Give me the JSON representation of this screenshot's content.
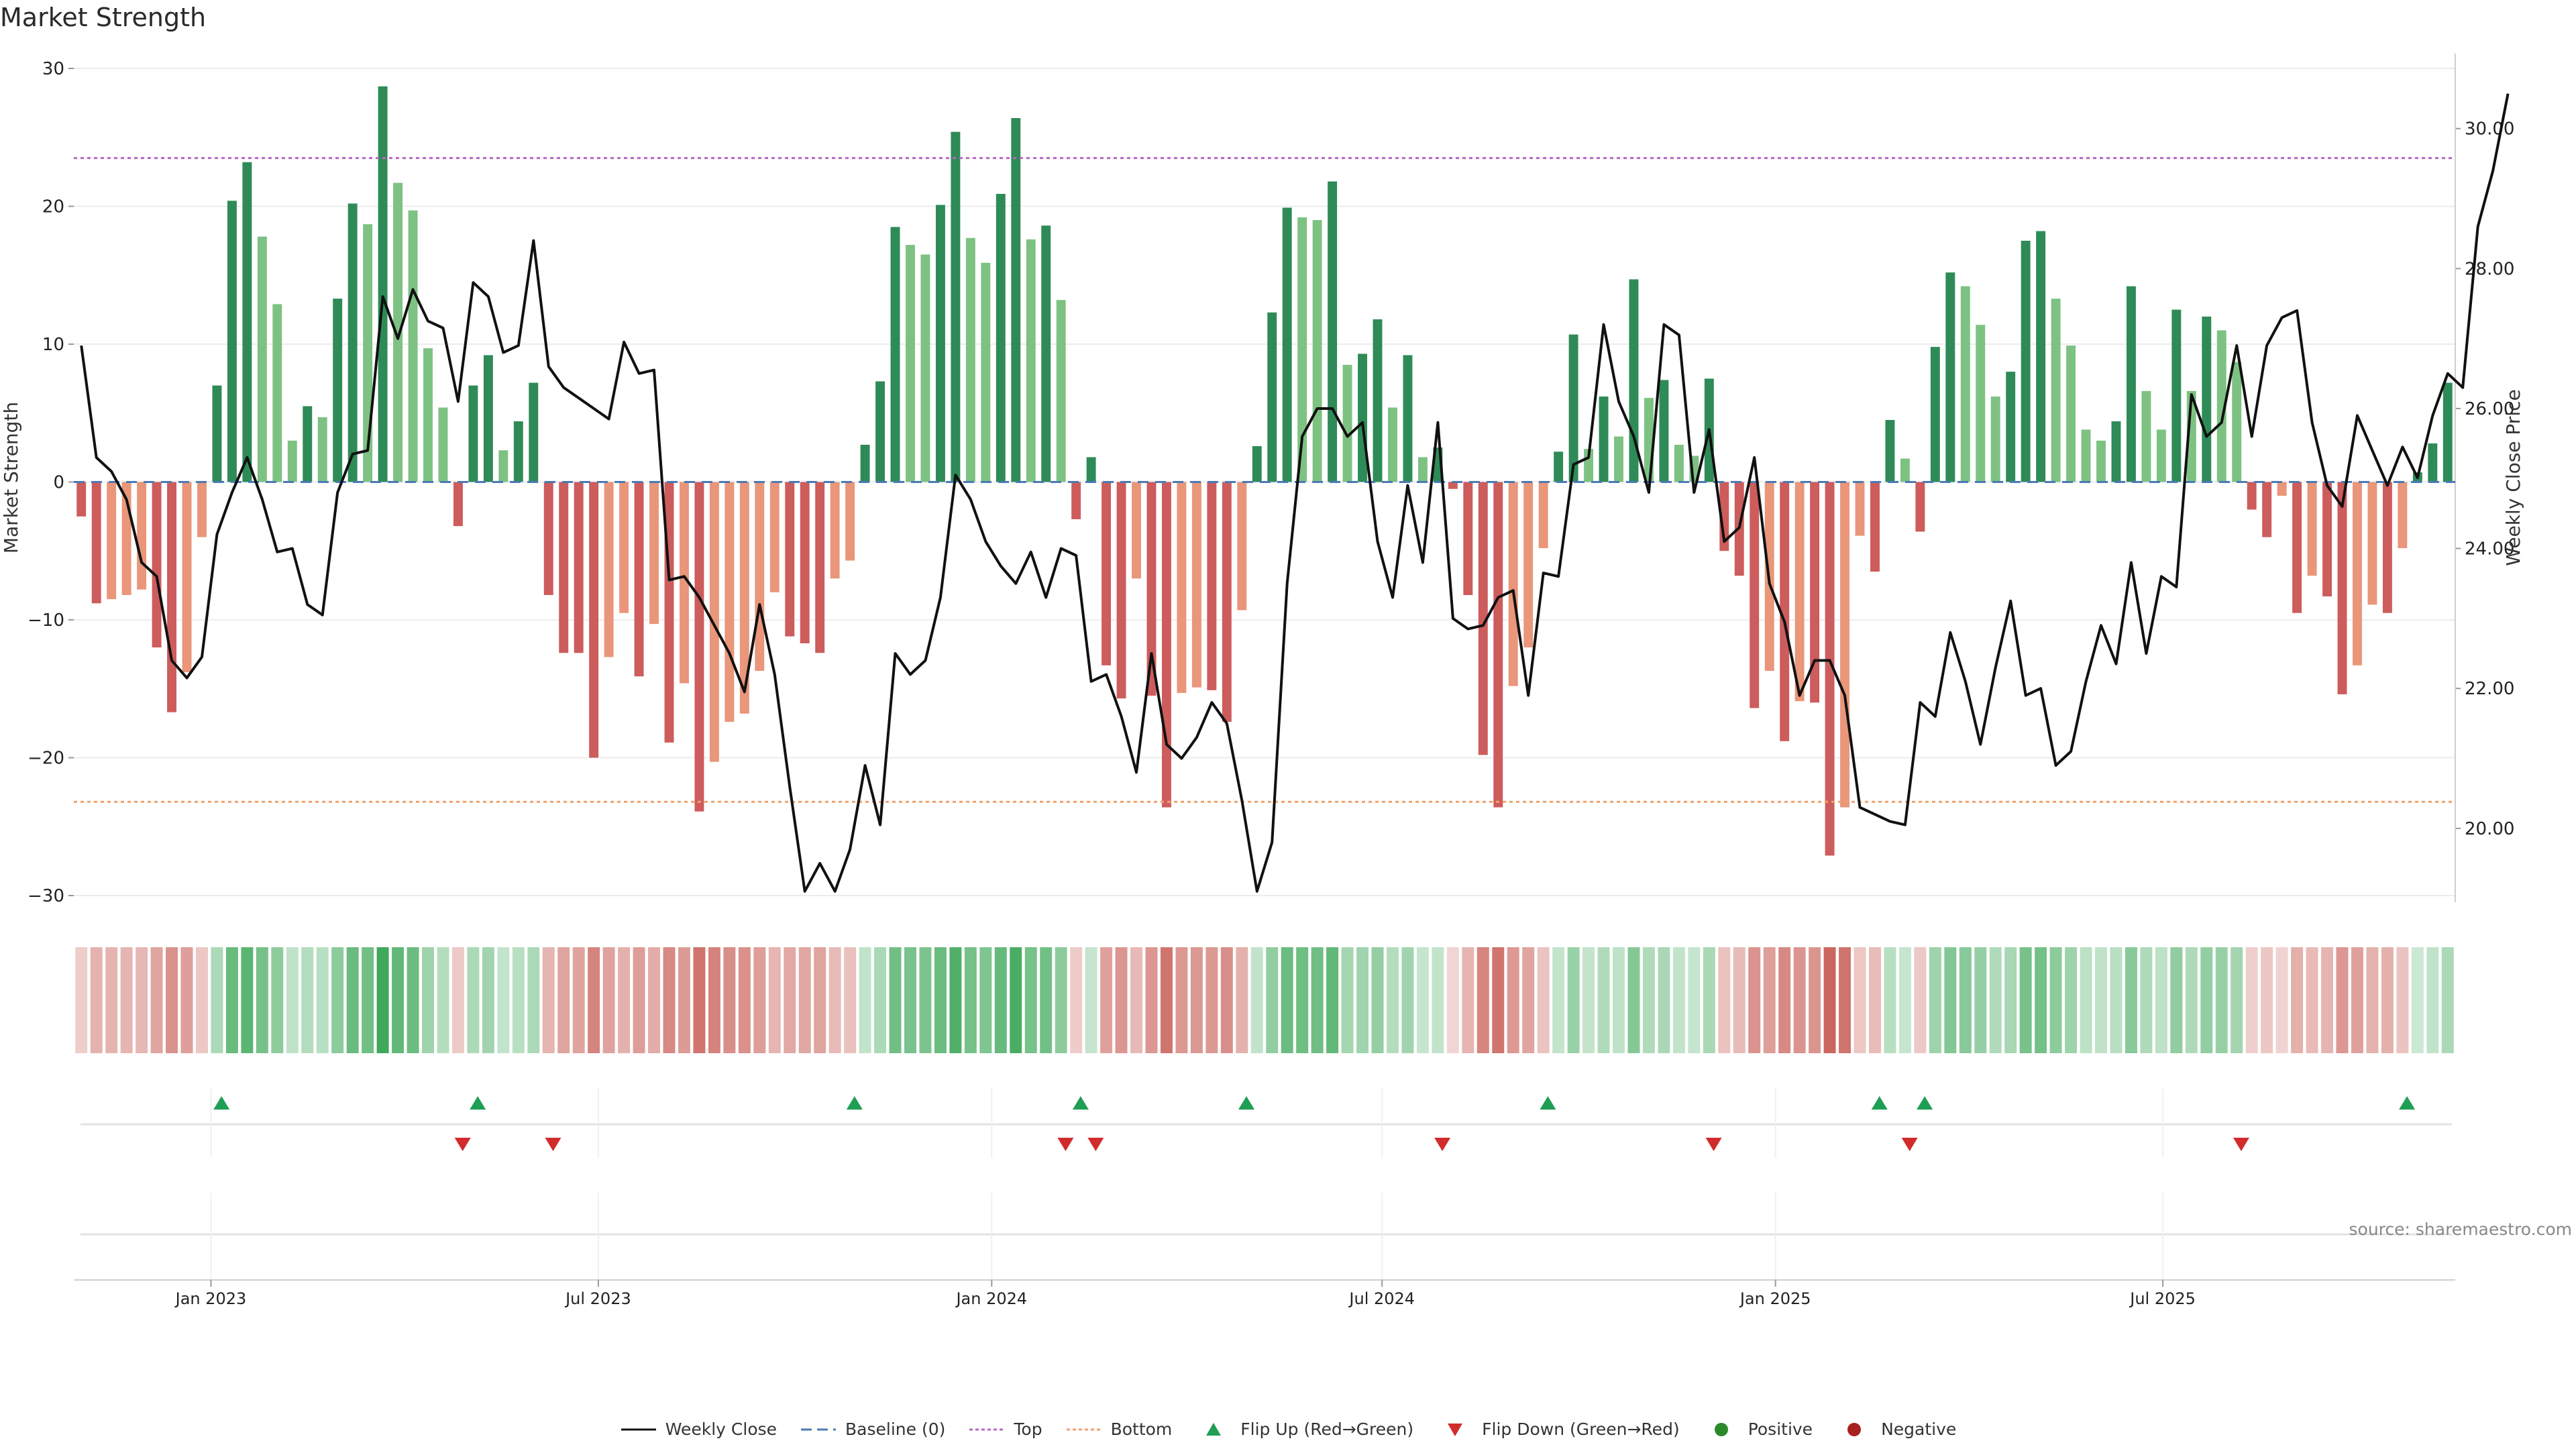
{
  "chart_data": {
    "type": "bar",
    "title": "Market Strength",
    "ylabel_left": "Market Strength",
    "ylabel_right": "Weekly Close Price",
    "source": "source: sharemaestro.com",
    "y_left_range": [
      -30,
      30
    ],
    "y_left_ticks": [
      "30",
      "20",
      "10",
      "0",
      "−10",
      "−20",
      "−30"
    ],
    "y_left_tick_values": [
      30,
      20,
      10,
      0,
      -10,
      -20,
      -30
    ],
    "y_right_range": [
      19.04,
      30.86
    ],
    "y_right_ticks": [
      "30.00",
      "28.00",
      "26.00",
      "24.00",
      "22.00",
      "20.00"
    ],
    "y_right_tick_values": [
      30,
      28,
      26,
      24,
      22,
      20
    ],
    "top_line": 23.5,
    "bottom_line": -23.2,
    "x_ticks": [
      "Jan 2023",
      "Jul 2023",
      "Jan 2024",
      "Jul 2024",
      "Jan 2025",
      "Jul 2025"
    ],
    "x_tick_weeks": [
      8.6,
      34.3,
      60.4,
      86.3,
      112.4,
      138.1
    ],
    "strength": [
      -2.5,
      -8.8,
      -8.5,
      -8.2,
      -7.8,
      -12,
      -16.7,
      -13.8,
      -4,
      7,
      20.4,
      23.2,
      17.8,
      12.9,
      3,
      5.5,
      4.7,
      13.3,
      20.2,
      18.7,
      28.7,
      21.7,
      19.7,
      9.7,
      5.4,
      -3.2,
      7,
      9.2,
      2.3,
      4.4,
      7.2,
      -8.2,
      -12.4,
      -12.4,
      -20,
      -12.7,
      -9.5,
      -14.1,
      -10.3,
      -18.9,
      -14.6,
      -23.9,
      -20.3,
      -17.4,
      -16.8,
      -13.7,
      -8,
      -11.2,
      -11.7,
      -12.4,
      -7,
      -5.7,
      2.7,
      7.3,
      18.5,
      17.2,
      16.5,
      20.1,
      25.4,
      17.7,
      15.9,
      20.9,
      26.4,
      17.6,
      18.6,
      13.2,
      -2.7,
      1.8,
      -13.3,
      -15.7,
      -7,
      -15.5,
      -23.6,
      -15.3,
      -14.9,
      -15.1,
      -17.4,
      -9.3,
      2.6,
      12.3,
      19.9,
      19.2,
      19,
      21.8,
      8.5,
      9.3,
      11.8,
      5.4,
      9.2,
      1.8,
      2.5,
      -0.5,
      -8.2,
      -19.8,
      -23.6,
      -14.8,
      -12,
      -4.8,
      2.2,
      10.7,
      2.4,
      6.2,
      3.3,
      14.7,
      6.1,
      7.4,
      2.7,
      1.9,
      7.5,
      -5,
      -6.8,
      -16.4,
      -13.7,
      -18.8,
      -15.9,
      -16,
      -27.1,
      -23.6,
      -3.9,
      -6.5,
      4.5,
      1.7,
      -3.6,
      9.8,
      15.2,
      14.2,
      11.4,
      6.2,
      8,
      17.5,
      18.2,
      13.3,
      9.9,
      3.8,
      3,
      4.4,
      14.2,
      6.6,
      3.8,
      12.5,
      6.6,
      12,
      11,
      8.7,
      -2,
      -4,
      -1,
      -9.5,
      -6.8,
      -8.3,
      -15.4,
      -13.3,
      -8.9,
      -9.5,
      -4.8,
      0.7,
      2.8,
      7.2
    ],
    "weekly_close": [
      26.9,
      25.3,
      25.1,
      24.7,
      23.8,
      23.6,
      22.4,
      22.15,
      22.45,
      24.2,
      24.8,
      25.3,
      24.7,
      23.95,
      24,
      23.2,
      23.05,
      24.8,
      25.35,
      25.4,
      27.6,
      27,
      27.7,
      27.25,
      27.15,
      26.1,
      27.8,
      27.6,
      26.8,
      26.9,
      28.4,
      26.6,
      26.3,
      26.15,
      26,
      25.85,
      26.95,
      26.5,
      26.55,
      23.55,
      23.6,
      23.3,
      22.9,
      22.5,
      21.95,
      23.2,
      22.2,
      20.6,
      19.1,
      19.5,
      19.1,
      19.7,
      20.9,
      20.05,
      22.5,
      22.2,
      22.4,
      23.3,
      25.05,
      24.7,
      24.1,
      23.75,
      23.5,
      23.95,
      23.3,
      24,
      23.9,
      22.1,
      22.2,
      21.6,
      20.8,
      22.5,
      21.2,
      21,
      21.3,
      21.8,
      21.5,
      20.4,
      19.1,
      19.8,
      23.5,
      25.6,
      26,
      26,
      25.6,
      25.8,
      24.1,
      23.3,
      24.9,
      23.8,
      25.8,
      23,
      22.85,
      22.9,
      23.3,
      23.4,
      21.9,
      23.65,
      23.6,
      25.2,
      25.3,
      27.2,
      26.1,
      25.6,
      24.8,
      27.2,
      27.05,
      24.8,
      25.7,
      24.1,
      24.3,
      25.3,
      23.5,
      22.95,
      21.9,
      22.4,
      22.4,
      21.9,
      20.3,
      20.2,
      20.1,
      20.05,
      21.8,
      21.6,
      22.8,
      22.1,
      21.2,
      22.3,
      23.25,
      21.9,
      22,
      20.9,
      21.1,
      22.1,
      22.9,
      22.35,
      23.8,
      22.5,
      23.6,
      23.45,
      26.2,
      25.6,
      25.8,
      26.9,
      25.6,
      26.9,
      27.3,
      27.4,
      25.8,
      24.9,
      24.6,
      25.9,
      25.4,
      24.9,
      25.45,
      25.01,
      25.9,
      26.5,
      26.3,
      28.6,
      29.4,
      30.5
    ],
    "flip_up_weeks": [
      9.3,
      26.3,
      51.3,
      66.3,
      77.3,
      97.3,
      119.3,
      122.3,
      154.3
    ],
    "flip_down_weeks": [
      25.3,
      31.3,
      65.3,
      67.3,
      90.3,
      108.3,
      121.3,
      143.3
    ],
    "legend": [
      {
        "label": "Weekly Close",
        "symbol": "line-solid",
        "color": "#111111"
      },
      {
        "label": "Baseline (0)",
        "symbol": "line-dash",
        "color": "#4a7ab5"
      },
      {
        "label": "Top",
        "symbol": "line-dot",
        "color": "#b867c6"
      },
      {
        "label": "Bottom",
        "symbol": "line-dot",
        "color": "#f0a16b"
      },
      {
        "label": "Flip Up (Red→Green)",
        "symbol": "tri-up",
        "color": "#1f9e55"
      },
      {
        "label": "Flip Down (Green→Red)",
        "symbol": "tri-down",
        "color": "#d12b2b"
      },
      {
        "label": "Positive",
        "symbol": "dot",
        "color": "#2a8a2a"
      },
      {
        "label": "Negative",
        "symbol": "dot",
        "color": "#a82020"
      }
    ],
    "colors": {
      "pos_dark": "#2e8b57",
      "pos_light": "#7dc282",
      "neg_dark": "#cd5c5c",
      "neg_light": "#e9967a",
      "heat_pos": "#3fa85a",
      "heat_neg": "#c96058",
      "top_line": "#b867c6",
      "bottom_line": "#f0a16b",
      "baseline": "#4a7ab5",
      "close_line": "#111111",
      "flip_up": "#1f9e55",
      "flip_down": "#d12b2b"
    }
  }
}
